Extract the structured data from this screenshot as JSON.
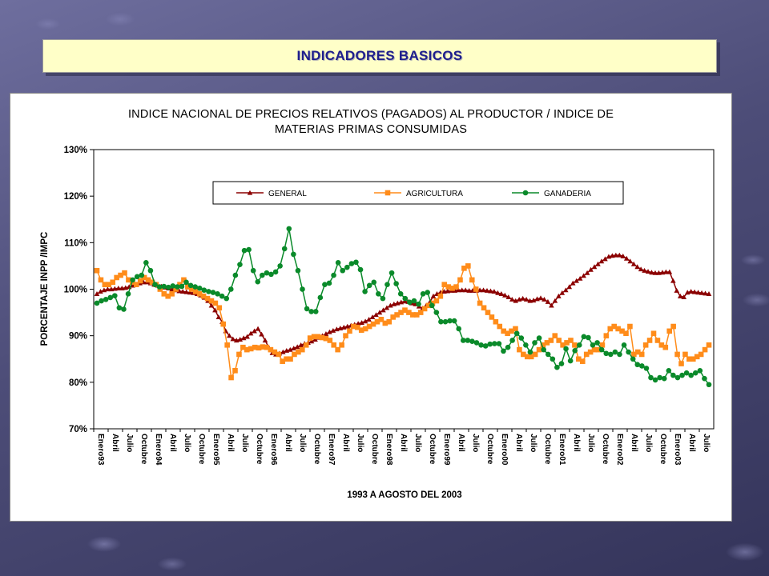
{
  "banner": {
    "title": "INDICADORES BASICOS"
  },
  "chart_data": {
    "type": "line",
    "title_line1": "INDICE NACIONAL DE PRECIOS RELATIVOS (PAGADOS) AL PRODUCTOR / INDICE DE",
    "title_line2": "MATERIAS PRIMAS CONSUMIDAS",
    "xlabel": "1993 A AGOSTO DEL 2003",
    "ylabel": "PORCENTAJE INPP /IMPC",
    "ylim": [
      70,
      130
    ],
    "yticks": [
      "70%",
      "80%",
      "90%",
      "100%",
      "110%",
      "120%",
      "130%"
    ],
    "legend_position": "top",
    "x_tick_labels": [
      "Enero93",
      "Abril",
      "Julio",
      "Octubre",
      "Enero94",
      "Abril",
      "Julio",
      "Octubre",
      "Enero95",
      "Abril",
      "Julio",
      "Octubre",
      "Enero96",
      "Abril",
      "Julio",
      "Octubre",
      "Enero97",
      "Abril",
      "Julio",
      "Octubre",
      "Enero98",
      "Abril",
      "Julio",
      "Octubre",
      "Enero99",
      "Abril",
      "Julio",
      "Octubre",
      "Enero00",
      "Abril",
      "Julio",
      "Octubre",
      "Enero01",
      "Abril",
      "Julio",
      "Octubre",
      "Enero02",
      "Abril",
      "Julio",
      "Octubre",
      "Enero03",
      "Abril",
      "Julio"
    ],
    "series": [
      {
        "name": "GENERAL",
        "color": "#8b0000",
        "marker": "triangle",
        "values": [
          99,
          99.5,
          99.8,
          100,
          100,
          100.1,
          100.2,
          100.2,
          100.3,
          100.5,
          100.8,
          101,
          101.3,
          101.5,
          101.5,
          101.3,
          101,
          100.8,
          100.6,
          100.4,
          100.2,
          100,
          99.8,
          99.6,
          99.5,
          99.4,
          99.3,
          99.2,
          99,
          98.7,
          98.2,
          97.5,
          96.5,
          95.5,
          94,
          93,
          91,
          90,
          89.3,
          89,
          89.2,
          89.5,
          89.8,
          90.5,
          91,
          91.5,
          90.3,
          89,
          87.5,
          86.3,
          86,
          86.2,
          86.5,
          86.8,
          87,
          87.3,
          87.6,
          88,
          88.3,
          88.5,
          88.8,
          89.2,
          89.6,
          90,
          90.4,
          90.8,
          91.1,
          91.4,
          91.6,
          91.8,
          92,
          92.2,
          92.4,
          92.6,
          92.8,
          93.1,
          93.5,
          94,
          94.5,
          95,
          95.5,
          96,
          96.5,
          96.8,
          97,
          97.2,
          97.4,
          97.3,
          97,
          96.8,
          96.3,
          95.9,
          96.5,
          97.2,
          98.5,
          99,
          99.3,
          99.5,
          99.6,
          99.7,
          99.7,
          99.8,
          99.8,
          99.8,
          99.7,
          99.7,
          99.7,
          99.8,
          99.8,
          99.7,
          99.6,
          99.5,
          99.2,
          99,
          98.7,
          98.3,
          97.8,
          97.5,
          97.8,
          98,
          97.8,
          97.5,
          97.6,
          97.9,
          98.1,
          97.8,
          97.3,
          96.5,
          97.5,
          98.5,
          99.2,
          99.8,
          100.5,
          101.3,
          101.8,
          102.3,
          102.9,
          103.5,
          104.2,
          104.8,
          105.4,
          106,
          106.5,
          107,
          107.2,
          107.3,
          107.3,
          107.1,
          106.6,
          106,
          105.4,
          104.8,
          104.3,
          104,
          103.8,
          103.6,
          103.5,
          103.5,
          103.6,
          103.7,
          103.7,
          101.8,
          99.7,
          98.5,
          98.3,
          99.3,
          99.5,
          99.4,
          99.3,
          99.2,
          99.1,
          99
        ]
      },
      {
        "name": "AGRICULTURA",
        "color": "#ff8c1a",
        "marker": "square",
        "values": [
          104,
          102,
          101,
          101,
          101.5,
          102.5,
          103,
          103.5,
          102,
          101.5,
          101,
          101.8,
          102.5,
          102,
          101.5,
          101,
          100,
          99,
          98.5,
          99,
          100,
          101,
          102,
          100.5,
          100,
          99.5,
          99,
          98.5,
          98,
          97.5,
          97,
          96,
          92.5,
          88,
          81,
          82.5,
          86,
          87.5,
          87,
          87.2,
          87.5,
          87.4,
          87.6,
          87.5,
          87,
          86.5,
          86,
          84.5,
          85,
          85,
          86,
          86.5,
          87,
          88,
          89.5,
          89.8,
          89.8,
          89.6,
          89.4,
          89,
          88,
          87,
          88,
          90,
          91,
          92,
          91.8,
          91.2,
          91.5,
          92,
          92.5,
          93,
          93.5,
          92.7,
          93,
          94,
          94.5,
          95,
          95.5,
          95,
          94.5,
          94.5,
          95,
          95.8,
          96.5,
          97,
          97.5,
          98.5,
          101,
          100.5,
          100.2,
          100.5,
          102,
          104.5,
          105,
          102,
          100,
          97,
          96,
          95,
          94,
          93,
          92,
          91,
          90.5,
          91,
          91.5,
          87,
          86,
          85.5,
          85.5,
          86,
          87,
          88,
          88.5,
          89,
          90,
          89,
          88,
          88.5,
          89,
          88,
          85,
          84.5,
          86,
          86.5,
          87,
          87,
          88,
          90,
          91.5,
          92,
          91.5,
          91,
          90.5,
          92,
          86,
          86.5,
          86,
          88,
          89,
          90.5,
          89,
          88,
          87.5,
          91,
          92,
          86,
          84,
          86,
          85,
          85,
          85.5,
          86,
          87,
          88
        ]
      },
      {
        "name": "GANADERIA",
        "color": "#0a8a2a",
        "marker": "circle",
        "values": [
          97,
          97.5,
          97.8,
          98.2,
          98.6,
          96,
          95.7,
          99,
          102,
          102.7,
          103,
          105.7,
          104,
          101,
          100.5,
          100.6,
          100.4,
          100.7,
          100.5,
          100.6,
          101.5,
          100.8,
          100.5,
          100.2,
          99.8,
          99.5,
          99.3,
          99,
          98.5,
          98,
          100,
          103,
          105.3,
          108.3,
          108.5,
          104,
          101.6,
          103,
          103.5,
          103.2,
          103.7,
          105,
          108.7,
          113,
          107.5,
          104,
          100,
          95.8,
          95.2,
          95.2,
          98.2,
          101,
          101.3,
          103,
          105.7,
          104,
          104.7,
          105.5,
          105.8,
          104.2,
          99.5,
          100.8,
          101.5,
          99,
          98,
          101,
          103.5,
          101.2,
          99,
          98,
          97.2,
          97.5,
          96.8,
          99,
          99.3,
          96.5,
          95,
          93,
          93,
          93.2,
          93.2,
          91.5,
          89,
          89,
          88.8,
          88.5,
          88,
          87.8,
          88.2,
          88.3,
          88.3,
          86.7,
          87.5,
          89,
          90.5,
          89.5,
          88,
          86.5,
          88.5,
          89.5,
          87,
          86,
          85,
          83.2,
          84,
          87.2,
          84.6,
          86.8,
          88,
          89.8,
          89.6,
          88,
          88.5,
          87,
          86.2,
          86,
          86.5,
          86,
          88,
          86.5,
          85,
          83.8,
          83.5,
          83,
          81,
          80.5,
          81,
          80.8,
          82.5,
          81.5,
          81,
          81.5,
          82,
          81.5,
          82,
          82.5,
          80.8,
          79.5
        ]
      }
    ]
  }
}
